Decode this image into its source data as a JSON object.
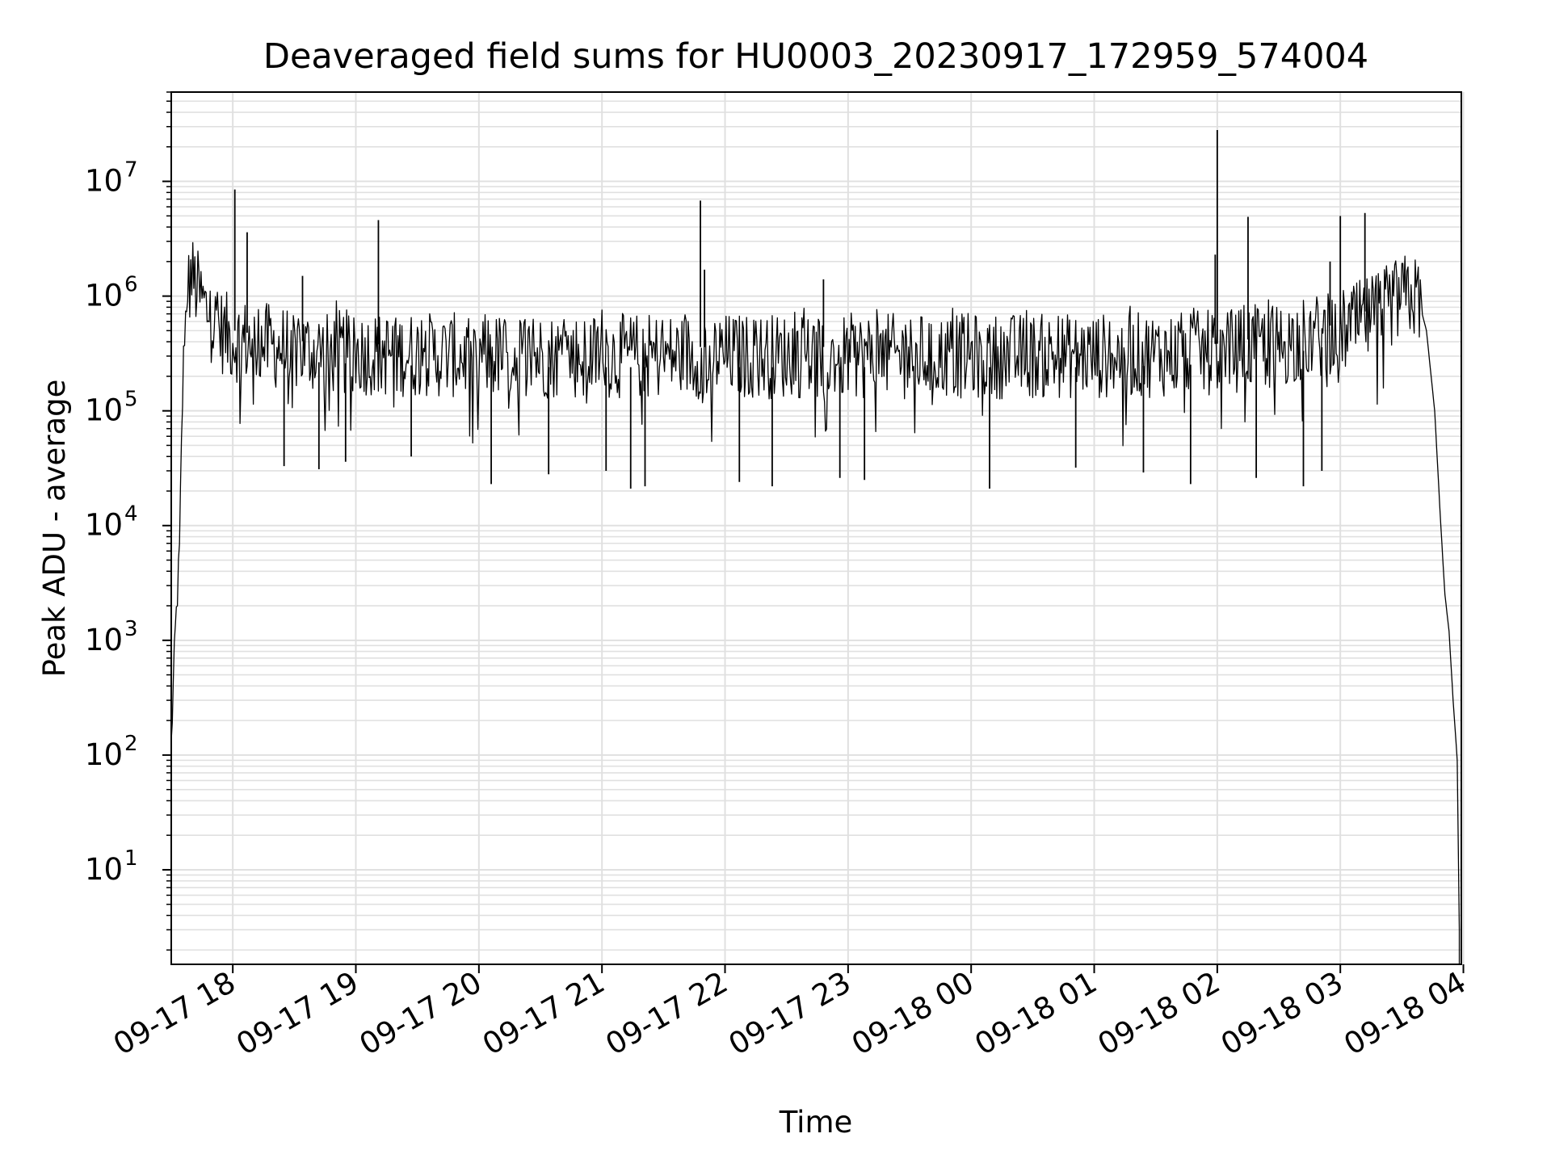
{
  "chart_data": {
    "type": "line",
    "title": "Deaveraged field sums for HU0003_20230917_172959_574004",
    "xlabel": "Time",
    "ylabel": "Peak ADU - average",
    "x_axis": {
      "kind": "datetime",
      "range": [
        "2023-09-17 17:30",
        "2023-09-18 03:59"
      ],
      "ticks": [
        {
          "value": "2023-09-17 18:00",
          "label": "09-17 18"
        },
        {
          "value": "2023-09-17 19:00",
          "label": "09-17 19"
        },
        {
          "value": "2023-09-17 20:00",
          "label": "09-17 20"
        },
        {
          "value": "2023-09-17 21:00",
          "label": "09-17 21"
        },
        {
          "value": "2023-09-17 22:00",
          "label": "09-17 22"
        },
        {
          "value": "2023-09-17 23:00",
          "label": "09-17 23"
        },
        {
          "value": "2023-09-18 00:00",
          "label": "09-18 00"
        },
        {
          "value": "2023-09-18 01:00",
          "label": "09-18 01"
        },
        {
          "value": "2023-09-18 02:00",
          "label": "09-18 02"
        },
        {
          "value": "2023-09-18 03:00",
          "label": "09-18 03"
        },
        {
          "value": "2023-09-18 04:00",
          "label": "09-18 04"
        }
      ]
    },
    "y_axis": {
      "scale": "log",
      "range": [
        1.5,
        60000000
      ],
      "ticks": [
        {
          "value": 10,
          "base": "10",
          "exp": "1"
        },
        {
          "value": 100,
          "base": "10",
          "exp": "2"
        },
        {
          "value": 1000,
          "base": "10",
          "exp": "3"
        },
        {
          "value": 10000,
          "base": "10",
          "exp": "4"
        },
        {
          "value": 100000,
          "base": "10",
          "exp": "5"
        },
        {
          "value": 1000000,
          "base": "10",
          "exp": "6"
        },
        {
          "value": 10000000,
          "base": "10",
          "exp": "7"
        }
      ]
    },
    "grid": true,
    "series_color": "#000000",
    "grid_color": "#e0e0e0",
    "series": [
      {
        "points": [
          [
            "2023-09-17 17:30",
            120
          ],
          [
            "2023-09-17 17:31",
            400
          ],
          [
            "2023-09-17 17:32",
            1200
          ],
          [
            "2023-09-17 17:33",
            2500
          ],
          [
            "2023-09-17 17:34",
            6000
          ],
          [
            "2023-09-17 17:35",
            50000
          ],
          [
            "2023-09-17 17:36",
            300000
          ],
          [
            "2023-09-17 17:37",
            700000
          ],
          [
            "2023-09-17 17:38",
            1100000
          ],
          [
            "2023-09-17 17:40",
            1500000
          ],
          [
            "2023-09-17 17:42",
            1200000
          ],
          [
            "2023-09-17 17:45",
            900000
          ],
          [
            "2023-09-17 17:48",
            700000
          ],
          [
            "2023-09-17 17:51",
            550000
          ],
          [
            "2023-09-17 18:00",
            420000
          ],
          [
            "2023-09-17 18:30",
            340000
          ],
          [
            "2023-09-17 19:00",
            320000
          ],
          [
            "2023-09-17 20:00",
            300000
          ],
          [
            "2023-09-17 21:00",
            300000
          ],
          [
            "2023-09-17 22:00",
            300000
          ],
          [
            "2023-09-17 23:00",
            300000
          ],
          [
            "2023-09-18 00:00",
            300000
          ],
          [
            "2023-09-18 01:00",
            300000
          ],
          [
            "2023-09-18 02:00",
            320000
          ],
          [
            "2023-09-18 02:30",
            380000
          ],
          [
            "2023-09-18 03:00",
            480000
          ],
          [
            "2023-09-18 03:15",
            650000
          ],
          [
            "2023-09-18 03:25",
            850000
          ],
          [
            "2023-09-18 03:32",
            1000000
          ],
          [
            "2023-09-18 03:38",
            950000
          ],
          [
            "2023-09-18 03:42",
            500000
          ],
          [
            "2023-09-18 03:46",
            100000
          ],
          [
            "2023-09-18 03:49",
            10000
          ],
          [
            "2023-09-18 03:51",
            2500
          ],
          [
            "2023-09-18 03:53",
            1200
          ],
          [
            "2023-09-18 03:55",
            300
          ],
          [
            "2023-09-18 03:57",
            90
          ],
          [
            "2023-09-18 03:58",
            3
          ],
          [
            "2023-09-18 03:58",
            1.5
          ]
        ],
        "spikes_up": [
          [
            "2023-09-17 18:01",
            8500000
          ],
          [
            "2023-09-17 18:07",
            3600000
          ],
          [
            "2023-09-17 19:11",
            4600000
          ],
          [
            "2023-09-17 21:48",
            6800000
          ],
          [
            "2023-09-17 21:50",
            1700000
          ],
          [
            "2023-09-17 22:48",
            1400000
          ],
          [
            "2023-09-18 01:59",
            2300000
          ],
          [
            "2023-09-18 02:00",
            28000000
          ],
          [
            "2023-09-18 02:15",
            4900000
          ],
          [
            "2023-09-18 02:55",
            2000000
          ],
          [
            "2023-09-18 03:00",
            5000000
          ],
          [
            "2023-09-18 03:12",
            5300000
          ],
          [
            "2023-09-17 18:34",
            1500000
          ]
        ],
        "spikes_down": [
          [
            "2023-09-17 18:25",
            33000
          ],
          [
            "2023-09-17 18:42",
            31000
          ],
          [
            "2023-09-17 18:55",
            36000
          ],
          [
            "2023-09-17 19:27",
            40000
          ],
          [
            "2023-09-17 20:06",
            23000
          ],
          [
            "2023-09-17 20:34",
            28000
          ],
          [
            "2023-09-17 21:02",
            30000
          ],
          [
            "2023-09-17 21:14",
            21000
          ],
          [
            "2023-09-17 21:21",
            22000
          ],
          [
            "2023-09-17 22:07",
            24000
          ],
          [
            "2023-09-17 22:23",
            22000
          ],
          [
            "2023-09-17 22:56",
            26000
          ],
          [
            "2023-09-17 23:08",
            25000
          ],
          [
            "2023-09-18 00:09",
            21000
          ],
          [
            "2023-09-18 00:51",
            32000
          ],
          [
            "2023-09-18 01:24",
            29000
          ],
          [
            "2023-09-18 01:47",
            23000
          ],
          [
            "2023-09-18 02:19",
            26000
          ],
          [
            "2023-09-18 02:42",
            22000
          ],
          [
            "2023-09-18 02:51",
            30000
          ]
        ],
        "noise_band": {
          "typical_low": 100000,
          "typical_high": 600000,
          "sample_minutes": 0.5
        }
      }
    ]
  }
}
